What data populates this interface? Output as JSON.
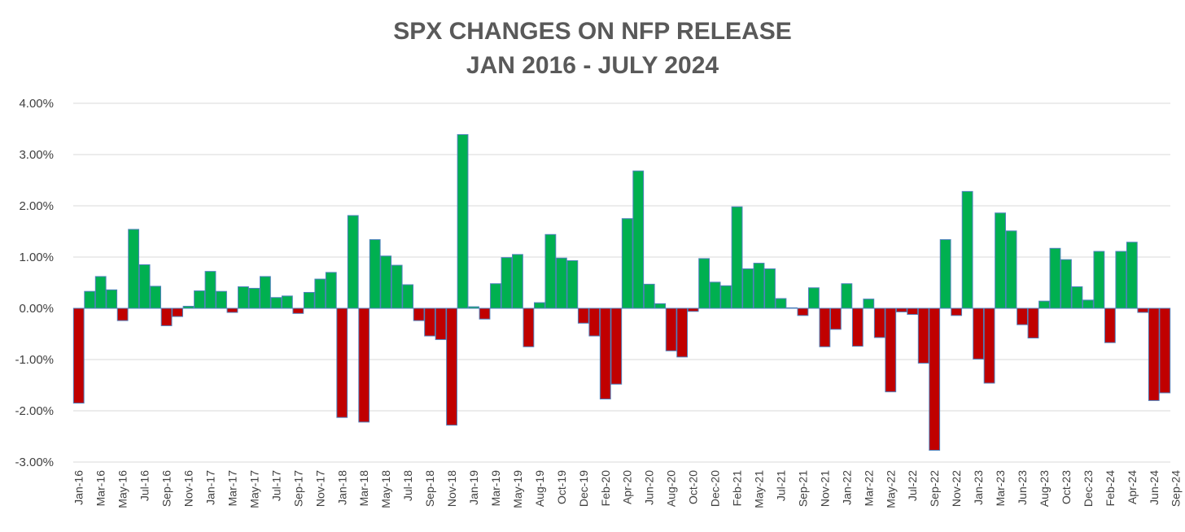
{
  "chart_data": {
    "type": "bar",
    "title_lines": [
      "SPX CHANGES ON NFP RELEASE",
      "JAN 2016 - JULY 2024"
    ],
    "ylabel": "",
    "xlabel": "",
    "ylim": [
      -3.0,
      4.0
    ],
    "y_ticks": [
      "4.00%",
      "3.00%",
      "2.00%",
      "1.00%",
      "0.00%",
      "-1.00%",
      "-2.00%",
      "-3.00%"
    ],
    "y_tick_values": [
      4,
      3,
      2,
      1,
      0,
      -1,
      -2,
      -3
    ],
    "grid": true,
    "colors": {
      "positive": "#00b050",
      "negative": "#c00000",
      "outline": "#4f81bd"
    },
    "x_tick_labels": [
      "Jan-16",
      "Mar-16",
      "May-16",
      "Jul-16",
      "Sep-16",
      "Nov-16",
      "Jan-17",
      "Mar-17",
      "May-17",
      "Jul-17",
      "Sep-17",
      "Nov-17",
      "Jan-18",
      "Mar-18",
      "May-18",
      "Jul-18",
      "Sep-18",
      "Nov-18",
      "Jan-19",
      "Mar-19",
      "May-19",
      "Aug-19",
      "Oct-19",
      "Dec-19",
      "Feb-20",
      "Apr-20",
      "Jun-20",
      "Aug-20",
      "Oct-20",
      "Dec-20",
      "Feb-21",
      "May-21",
      "Jul-21",
      "Sep-21",
      "Nov-21",
      "Jan-22",
      "Mar-22",
      "May-22",
      "Jul-22",
      "Sep-22",
      "Nov-22",
      "Jan-23",
      "Mar-23",
      "Jun-23",
      "Aug-23",
      "Oct-23",
      "Dec-23",
      "Feb-24",
      "Apr-24",
      "Jun-24",
      "Sep-24"
    ],
    "x_tick_bar_index": [
      0,
      2,
      4,
      6,
      8,
      10,
      12,
      14,
      16,
      18,
      20,
      22,
      24,
      26,
      28,
      30,
      32,
      34,
      36,
      38,
      40,
      42,
      44,
      46,
      48,
      50,
      52,
      54,
      56,
      58,
      60,
      62,
      64,
      66,
      68,
      70,
      72,
      74,
      76,
      78,
      80,
      82,
      84,
      86,
      88,
      90,
      92,
      94,
      96,
      98,
      100
    ],
    "values": [
      -1.85,
      0.33,
      0.62,
      0.36,
      -0.24,
      1.54,
      0.85,
      0.43,
      -0.34,
      -0.16,
      0.04,
      0.34,
      0.72,
      0.33,
      -0.08,
      0.42,
      0.39,
      0.62,
      0.21,
      0.24,
      -0.1,
      0.31,
      0.57,
      0.7,
      -2.13,
      1.81,
      -2.22,
      1.34,
      1.02,
      0.84,
      0.46,
      -0.24,
      -0.54,
      -0.61,
      -2.28,
      3.39,
      0.03,
      -0.21,
      0.48,
      0.99,
      1.05,
      -0.75,
      0.11,
      1.44,
      0.98,
      0.93,
      -0.29,
      -0.54,
      -1.77,
      -1.48,
      1.75,
      2.68,
      0.47,
      0.09,
      -0.83,
      -0.95,
      -0.06,
      0.97,
      0.51,
      0.44,
      1.98,
      0.77,
      0.88,
      0.77,
      0.19,
      0.01,
      -0.14,
      0.4,
      -0.75,
      -0.41,
      0.48,
      -0.74,
      0.18,
      -0.57,
      -1.63,
      -0.07,
      -0.12,
      -1.07,
      -2.77,
      1.34,
      -0.14,
      2.28,
      -0.99,
      -1.46,
      1.86,
      1.51,
      -0.32,
      -0.58,
      0.14,
      1.17,
      0.95,
      0.42,
      0.16,
      1.11,
      -0.67,
      1.11,
      1.29,
      -0.08,
      -1.8,
      -1.65
    ]
  }
}
